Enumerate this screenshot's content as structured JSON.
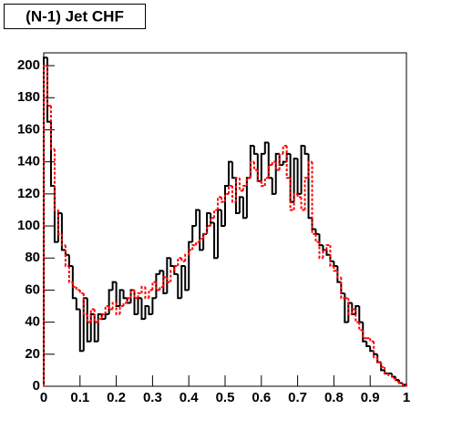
{
  "chart_data": {
    "type": "histogram",
    "title": "(N-1) Jet CHF",
    "bins": [
      0,
      0.01,
      0.02,
      0.03,
      0.04,
      0.05,
      0.06,
      0.07,
      0.08,
      0.09,
      0.1,
      0.11,
      0.12,
      0.13,
      0.14,
      0.15,
      0.16,
      0.17,
      0.18,
      0.19,
      0.2,
      0.21,
      0.22,
      0.23,
      0.24,
      0.25,
      0.26,
      0.27,
      0.28,
      0.29,
      0.3,
      0.31,
      0.32,
      0.33,
      0.34,
      0.35,
      0.36,
      0.37,
      0.38,
      0.39,
      0.4,
      0.41,
      0.42,
      0.43,
      0.44,
      0.45,
      0.46,
      0.47,
      0.48,
      0.49,
      0.5,
      0.51,
      0.52,
      0.53,
      0.54,
      0.55,
      0.56,
      0.57,
      0.58,
      0.59,
      0.6,
      0.61,
      0.62,
      0.63,
      0.64,
      0.65,
      0.66,
      0.67,
      0.68,
      0.69,
      0.7,
      0.71,
      0.72,
      0.73,
      0.74,
      0.75,
      0.76,
      0.77,
      0.78,
      0.79,
      0.8,
      0.81,
      0.82,
      0.83,
      0.84,
      0.85,
      0.86,
      0.87,
      0.88,
      0.89,
      0.9,
      0.91,
      0.92,
      0.93,
      0.94,
      0.95,
      0.96,
      0.97,
      0.98,
      0.99,
      1
    ],
    "series": [
      {
        "color": "#000000",
        "dashed": false,
        "values": [
          205,
          165,
          125,
          90,
          108,
          85,
          82,
          75,
          55,
          48,
          22,
          55,
          28,
          45,
          28,
          45,
          42,
          45,
          60,
          65,
          50,
          60,
          55,
          52,
          60,
          45,
          55,
          42,
          50,
          45,
          55,
          70,
          72,
          58,
          80,
          75,
          70,
          55,
          75,
          60,
          90,
          100,
          110,
          85,
          95,
          108,
          102,
          80,
          110,
          100,
          125,
          140,
          130,
          108,
          118,
          105,
          130,
          150,
          145,
          128,
          145,
          152,
          130,
          120,
          145,
          138,
          140,
          145,
          115,
          142,
          120,
          150,
          145,
          105,
          98,
          95,
          88,
          85,
          82,
          78,
          75,
          65,
          58,
          40,
          52,
          45,
          50,
          40,
          28,
          25,
          22,
          20,
          15,
          10,
          8,
          8,
          6,
          4,
          2,
          1
        ]
      },
      {
        "color": "#ff0000",
        "dashed": true,
        "values": [
          200,
          175,
          148,
          110,
          95,
          88,
          75,
          65,
          62,
          60,
          58,
          45,
          40,
          48,
          40,
          42,
          45,
          50,
          48,
          52,
          45,
          50,
          52,
          55,
          60,
          55,
          58,
          62,
          55,
          60,
          65,
          60,
          62,
          68,
          65,
          72,
          75,
          80,
          78,
          82,
          85,
          88,
          90,
          92,
          95,
          100,
          105,
          110,
          118,
          115,
          120,
          125,
          115,
          130,
          122,
          125,
          130,
          140,
          135,
          128,
          125,
          130,
          138,
          140,
          135,
          145,
          150,
          130,
          110,
          120,
          118,
          110,
          130,
          140,
          95,
          90,
          80,
          85,
          88,
          75,
          72,
          68,
          55,
          55,
          45,
          48,
          40,
          35,
          30,
          30,
          28,
          18,
          15,
          12,
          8,
          7,
          5,
          3,
          2,
          1
        ]
      }
    ],
    "xlim": [
      0,
      1
    ],
    "ylim": [
      0,
      208
    ],
    "xticks": [
      0,
      0.1,
      0.2,
      0.3,
      0.4,
      0.5,
      0.6,
      0.7,
      0.8,
      0.9,
      1
    ],
    "yticks": [
      0,
      20,
      40,
      60,
      80,
      100,
      120,
      140,
      160,
      180,
      200
    ]
  }
}
